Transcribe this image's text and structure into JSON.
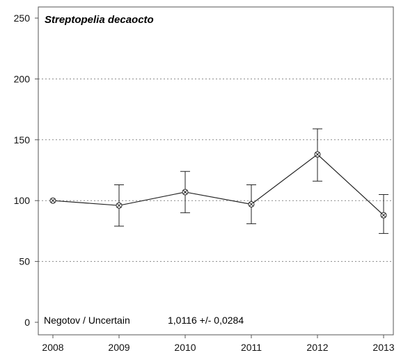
{
  "chart_data": {
    "type": "line",
    "title": "Streptopelia decaocto",
    "xlabel": "",
    "ylabel": "",
    "x": [
      2008,
      2009,
      2010,
      2011,
      2012,
      2013
    ],
    "x_tick_labels": [
      "2008",
      "2009",
      "2010",
      "2011",
      "2012",
      "2013"
    ],
    "y_ticks": [
      0,
      50,
      100,
      150,
      200,
      250
    ],
    "y_tick_labels": [
      "0",
      "50",
      "100",
      "150",
      "200",
      "250"
    ],
    "ylim": [
      0,
      250
    ],
    "grid": "horizontal dotted at 50, 100, 150, 200",
    "series": [
      {
        "values": [
          100,
          96,
          107,
          97,
          138,
          88
        ],
        "error_low": [
          100,
          79,
          90,
          81,
          116,
          73
        ],
        "error_high": [
          100,
          113,
          124,
          113,
          159,
          105
        ],
        "color": "#222222",
        "marker": "circle-with-x"
      }
    ],
    "annotation": {
      "label": "Negotov / Uncertain",
      "value": "1,0116 +/- 0,0284"
    }
  }
}
